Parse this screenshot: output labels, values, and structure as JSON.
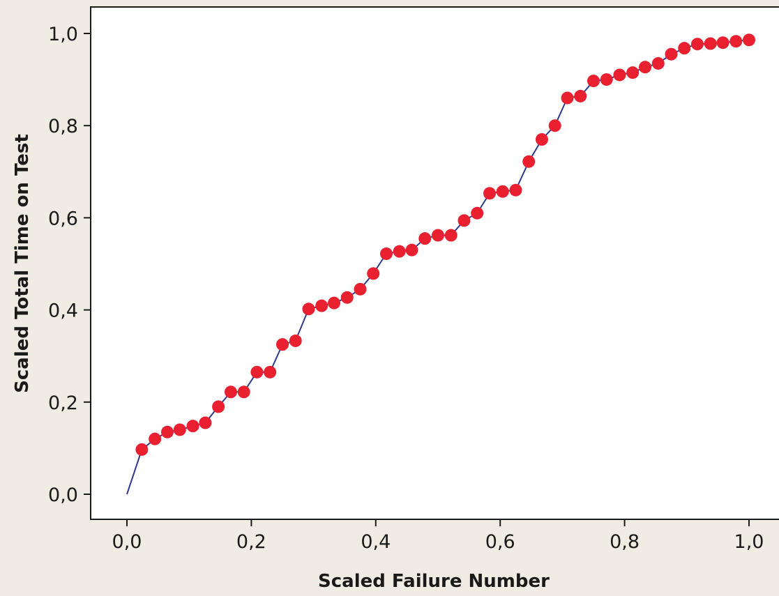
{
  "chart_data": {
    "type": "line",
    "title": "",
    "xlabel": "Scaled Failure Number",
    "ylabel": "Scaled Total Time on Test",
    "xlim": [
      0,
      1
    ],
    "ylim": [
      0,
      1
    ],
    "x_ticks": [
      "0,0",
      "0,2",
      "0,4",
      "0,6",
      "0,8",
      "1,0"
    ],
    "y_ticks": [
      "0,0",
      "0,2",
      "0,4",
      "0,6",
      "0,8",
      "1,0"
    ],
    "grid": false,
    "colors": {
      "line": "#2e3a8c",
      "marker": "#e8202f",
      "background": "#f0ece4",
      "plot_background": "#ffffff"
    },
    "line": {
      "x": [
        0.0,
        0.024,
        0.045,
        0.065,
        0.085,
        0.106,
        0.126,
        0.147,
        0.167,
        0.188,
        0.209,
        0.23,
        0.25,
        0.271,
        0.292,
        0.313,
        0.333,
        0.354,
        0.375,
        0.396,
        0.417,
        0.438,
        0.458,
        0.479,
        0.5,
        0.521,
        0.542,
        0.563,
        0.583,
        0.604,
        0.625,
        0.646,
        0.667,
        0.688,
        0.708,
        0.729,
        0.75,
        0.771,
        0.792,
        0.813,
        0.833,
        0.854,
        0.875,
        0.896,
        0.917,
        0.938,
        0.958,
        0.979,
        1.0
      ],
      "y": [
        0.0,
        0.097,
        0.12,
        0.135,
        0.14,
        0.148,
        0.155,
        0.19,
        0.222,
        0.222,
        0.265,
        0.265,
        0.325,
        0.333,
        0.402,
        0.409,
        0.415,
        0.427,
        0.445,
        0.479,
        0.522,
        0.527,
        0.53,
        0.555,
        0.562,
        0.562,
        0.594,
        0.61,
        0.653,
        0.657,
        0.66,
        0.722,
        0.77,
        0.8,
        0.86,
        0.864,
        0.897,
        0.9,
        0.91,
        0.915,
        0.927,
        0.935,
        0.955,
        0.968,
        0.977,
        0.978,
        0.98,
        0.983,
        0.986
      ]
    }
  }
}
